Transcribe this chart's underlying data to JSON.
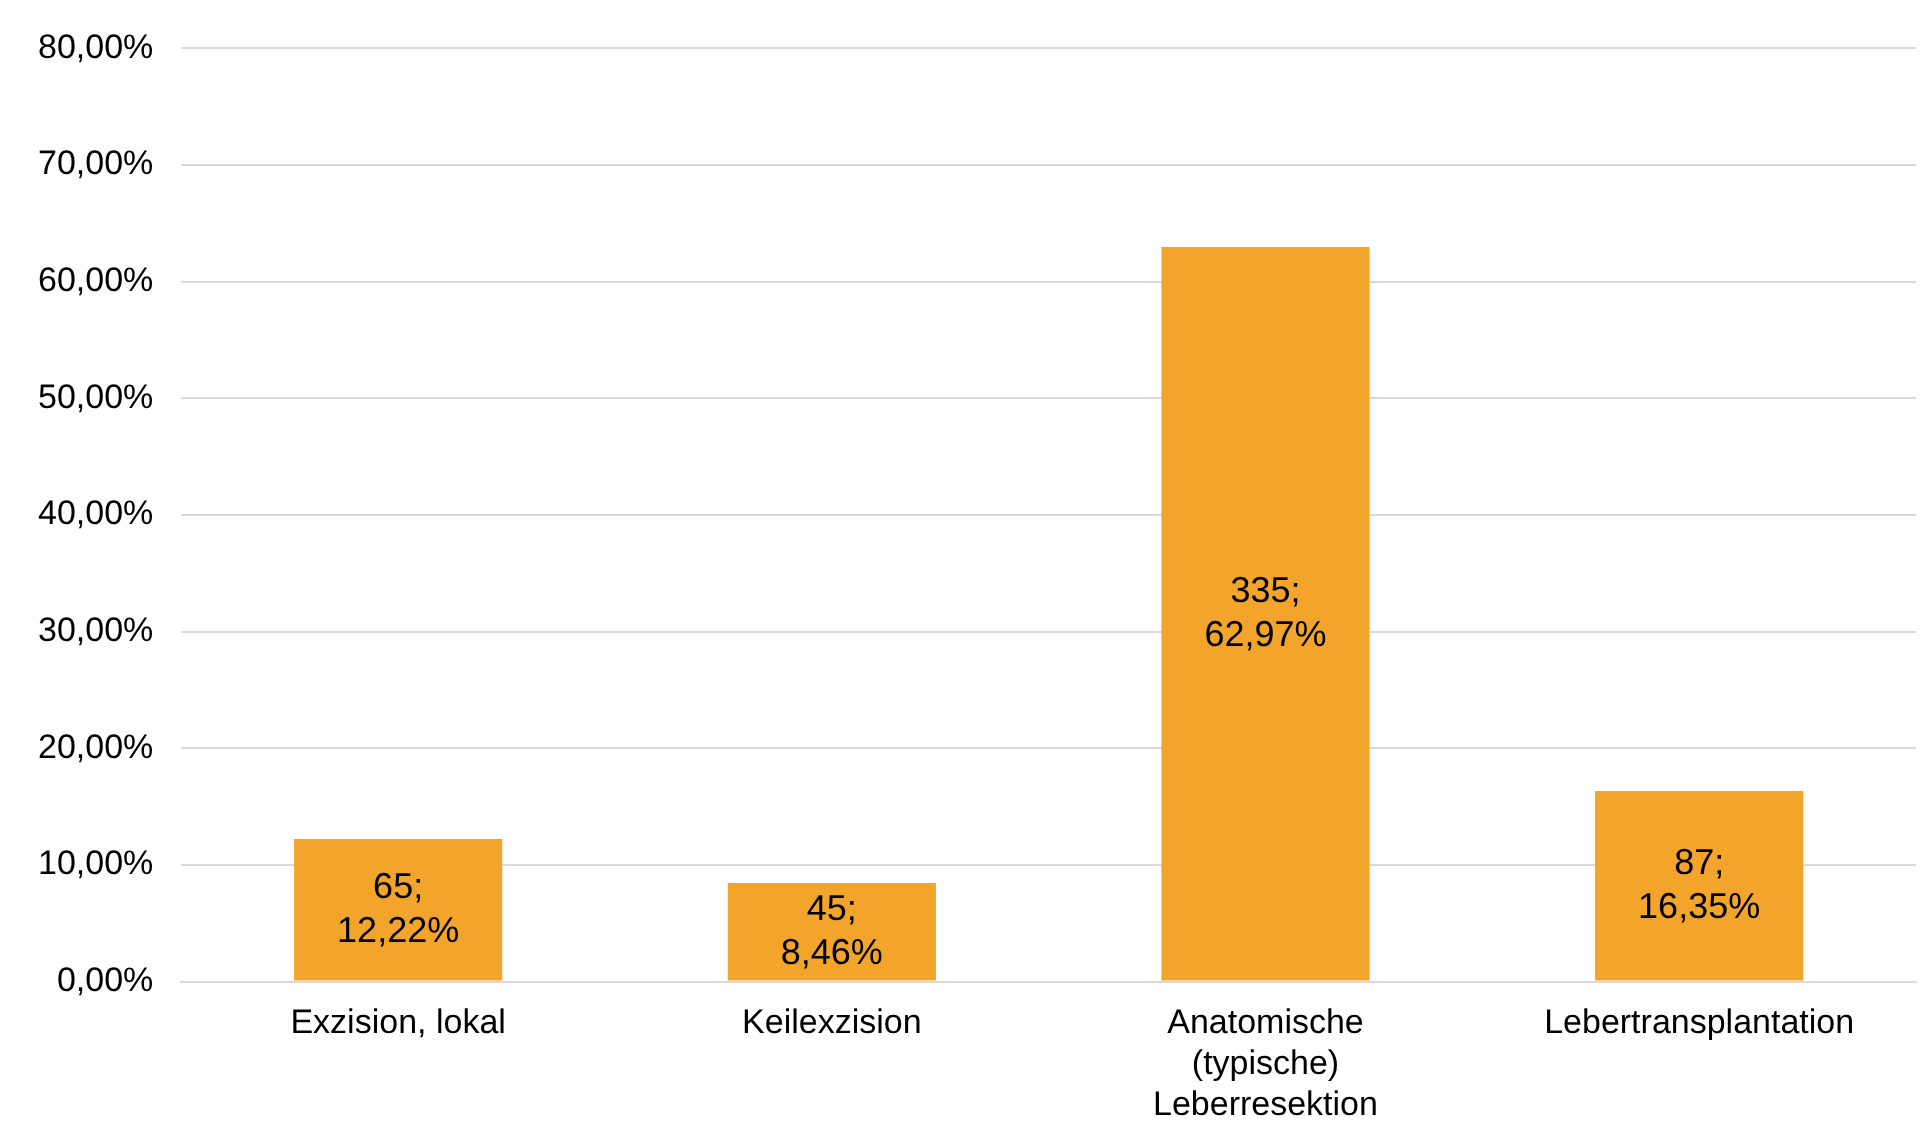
{
  "chart_data": {
    "type": "bar",
    "categories": [
      "Exzision, lokal",
      "Keilexzision",
      "Anatomische (typische) Leberresektion",
      "Lebertransplantation"
    ],
    "values": [
      12.22,
      8.46,
      62.97,
      16.35
    ],
    "value_labels": [
      "65; 12,22%",
      "45; 8,46%",
      "335; 62,97%",
      "87; 16,35%"
    ],
    "color": "#f2a42b",
    "ylim": [
      0,
      80
    ],
    "yticks": [
      {
        "value": 0,
        "label": "0,00%"
      },
      {
        "value": 10,
        "label": "10,00%"
      },
      {
        "value": 20,
        "label": "20,00%"
      },
      {
        "value": 30,
        "label": "30,00%"
      },
      {
        "value": 40,
        "label": "40,00%"
      },
      {
        "value": 50,
        "label": "50,00%"
      },
      {
        "value": 60,
        "label": "60,00%"
      },
      {
        "value": 70,
        "label": "70,00%"
      },
      {
        "value": 80,
        "label": "80,00%"
      }
    ],
    "grid": "y",
    "legend": false
  }
}
